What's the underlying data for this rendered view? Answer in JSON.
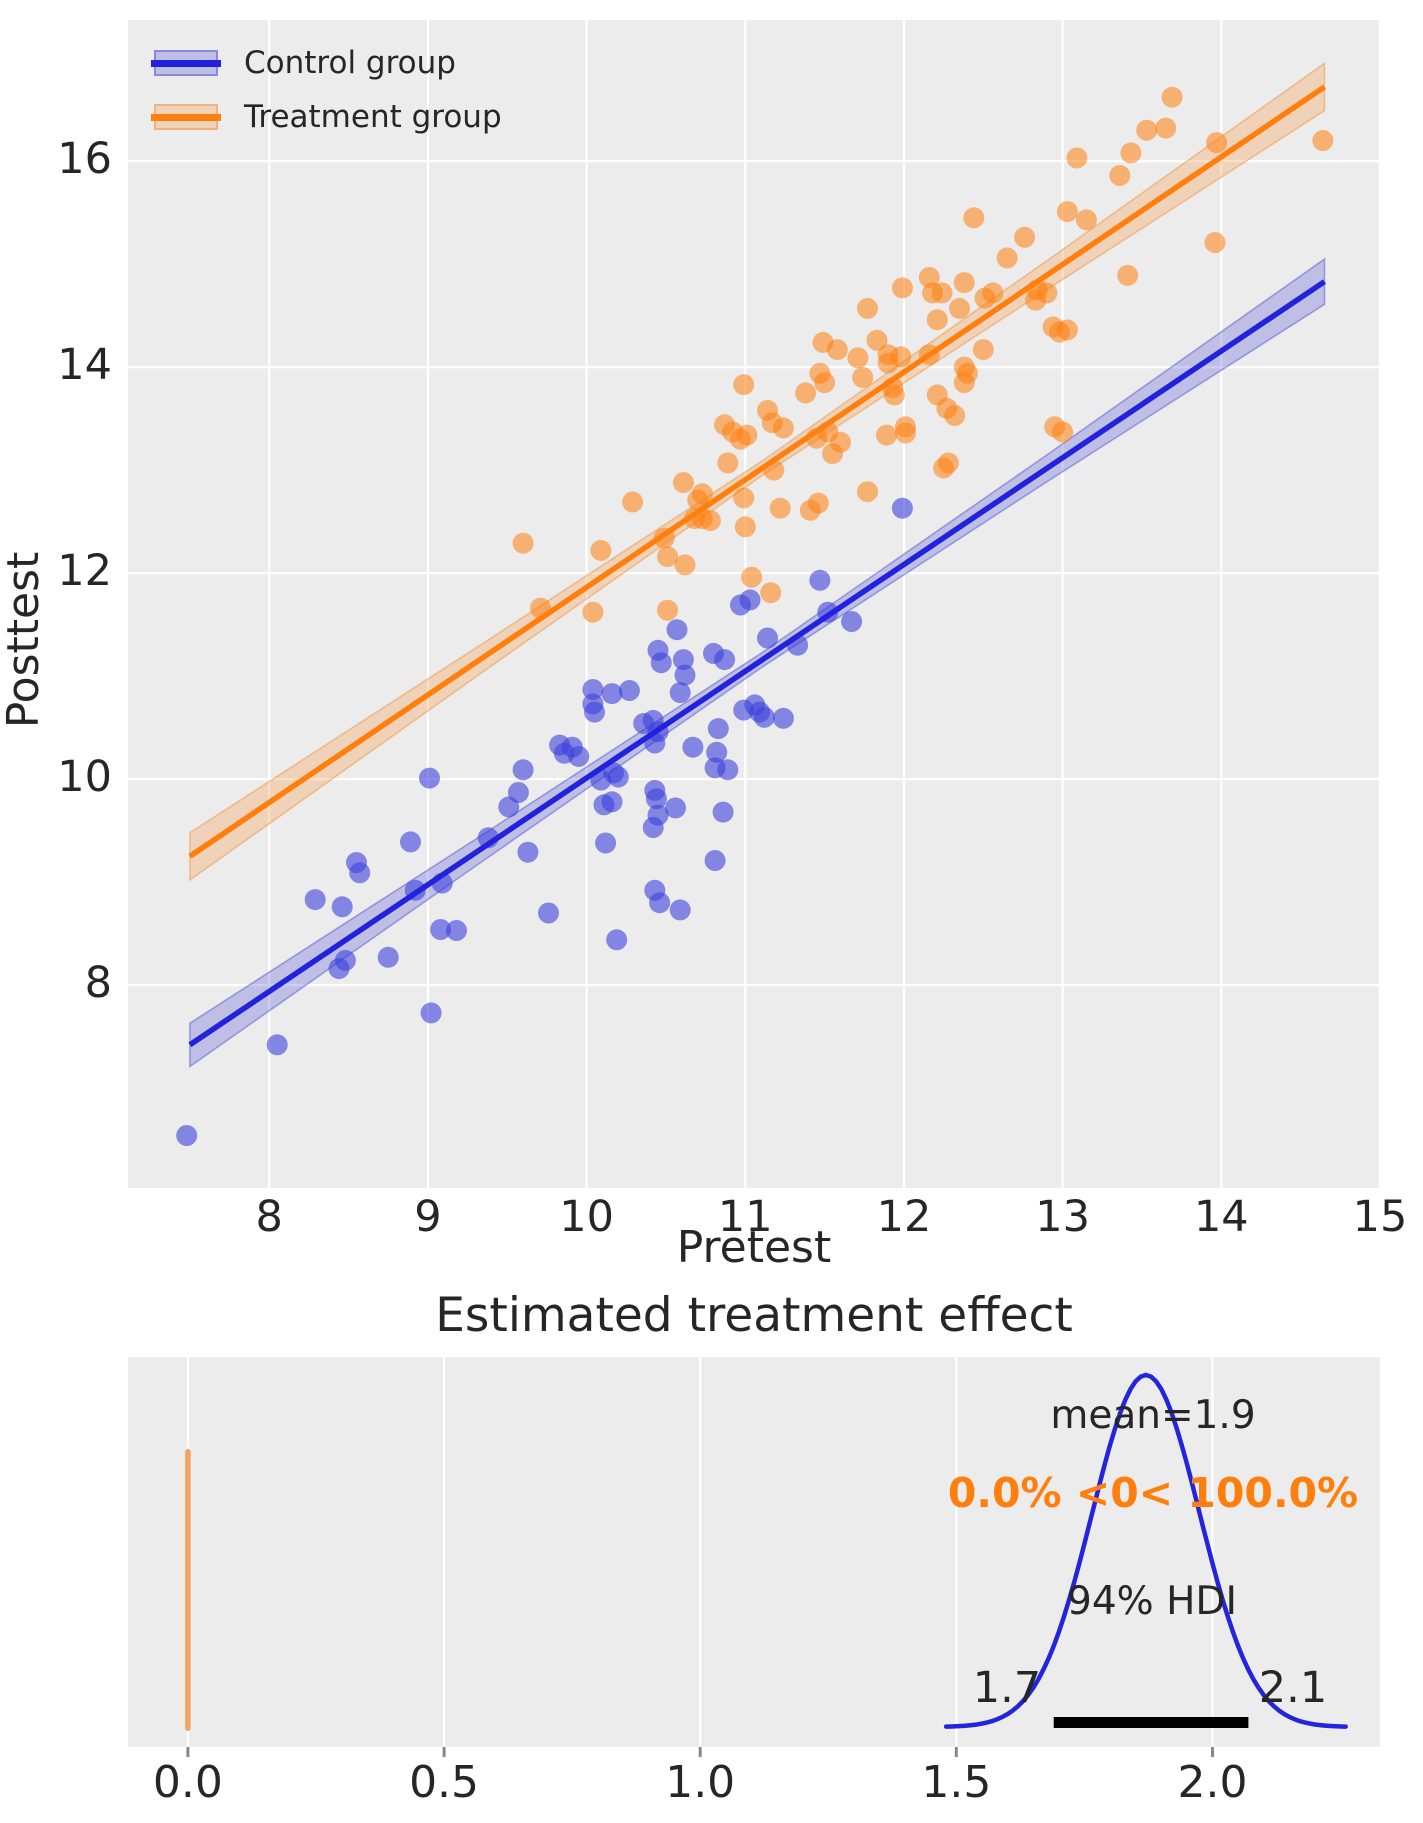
{
  "colors": {
    "background": "#ffffff",
    "axes_background": "#ececec",
    "grid": "#ffffff",
    "text": "#262626",
    "control_line": "#2222dd",
    "control_scatter": "#3c41dc",
    "control_band_fill": "rgba(70,70,215,0.27)",
    "control_band_edge": "rgba(70,70,215,0.45)",
    "treatment_line": "#ff7f0e",
    "treatment_scatter": "#ff7f0e",
    "treatment_band_fill": "rgba(246,150,60,0.30)",
    "treatment_band_edge": "rgba(240,150,70,0.50)",
    "kde_line": "#2424dd",
    "ref_line": "#f2a263",
    "hdi_bar": "#000000",
    "tick_mark": "#888888"
  },
  "chart_data": [
    {
      "type": "scatter",
      "title": "",
      "xlabel": "Pretest",
      "ylabel": "Posttest",
      "xlim": [
        7.11,
        15.0
      ],
      "ylim": [
        6.03,
        17.37
      ],
      "x_ticks": [
        8,
        9,
        10,
        11,
        12,
        13,
        14,
        15
      ],
      "y_ticks": [
        8,
        10,
        12,
        14,
        16
      ],
      "grid": true,
      "legend_position": "upper left",
      "series": [
        {
          "name": "Control group",
          "scatter_alpha": 0.6,
          "line": {
            "x": [
              7.5,
              14.65
            ],
            "y": [
              7.42,
              14.83
            ]
          },
          "band": {
            "x": [
              7.5,
              9.3,
              11.1,
              12.9,
              14.65
            ],
            "half_width": [
              0.21,
              0.13,
              0.07,
              0.13,
              0.22
            ]
          },
          "points": [
            [
              7.48,
              6.54
            ],
            [
              8.05,
              7.42
            ],
            [
              8.29,
              8.83
            ],
            [
              8.44,
              8.16
            ],
            [
              8.46,
              8.76
            ],
            [
              8.48,
              8.24
            ],
            [
              8.55,
              9.19
            ],
            [
              8.57,
              9.09
            ],
            [
              8.75,
              8.27
            ],
            [
              8.89,
              9.39
            ],
            [
              8.92,
              8.92
            ],
            [
              9.01,
              10.01
            ],
            [
              9.02,
              7.73
            ],
            [
              9.08,
              8.54
            ],
            [
              9.09,
              8.99
            ],
            [
              9.18,
              8.53
            ],
            [
              9.38,
              9.43
            ],
            [
              9.51,
              9.73
            ],
            [
              9.57,
              9.87
            ],
            [
              9.6,
              10.09
            ],
            [
              9.63,
              9.29
            ],
            [
              9.76,
              8.7
            ],
            [
              9.83,
              10.33
            ],
            [
              9.86,
              10.25
            ],
            [
              9.91,
              10.31
            ],
            [
              9.95,
              10.22
            ],
            [
              10.04,
              10.87
            ],
            [
              10.04,
              10.73
            ],
            [
              10.05,
              10.65
            ],
            [
              10.09,
              9.99
            ],
            [
              10.11,
              9.75
            ],
            [
              10.12,
              9.38
            ],
            [
              10.16,
              9.78
            ],
            [
              10.16,
              10.83
            ],
            [
              10.17,
              10.06
            ],
            [
              10.19,
              8.44
            ],
            [
              10.2,
              10.02
            ],
            [
              10.27,
              10.86
            ],
            [
              10.36,
              10.54
            ],
            [
              10.42,
              10.57
            ],
            [
              10.42,
              9.53
            ],
            [
              10.43,
              10.35
            ],
            [
              10.43,
              9.89
            ],
            [
              10.43,
              8.92
            ],
            [
              10.44,
              9.81
            ],
            [
              10.45,
              11.25
            ],
            [
              10.45,
              10.46
            ],
            [
              10.45,
              9.65
            ],
            [
              10.46,
              8.8
            ],
            [
              10.47,
              11.13
            ],
            [
              10.56,
              9.72
            ],
            [
              10.57,
              11.45
            ],
            [
              10.59,
              10.84
            ],
            [
              10.59,
              8.73
            ],
            [
              10.61,
              11.16
            ],
            [
              10.62,
              11.01
            ],
            [
              10.67,
              10.31
            ],
            [
              10.8,
              11.22
            ],
            [
              10.81,
              10.11
            ],
            [
              10.81,
              9.21
            ],
            [
              10.82,
              10.26
            ],
            [
              10.83,
              10.49
            ],
            [
              10.86,
              9.68
            ],
            [
              10.87,
              11.16
            ],
            [
              10.89,
              10.09
            ],
            [
              10.97,
              11.69
            ],
            [
              10.99,
              10.67
            ],
            [
              11.03,
              11.74
            ],
            [
              11.06,
              10.72
            ],
            [
              11.09,
              10.65
            ],
            [
              11.12,
              10.6
            ],
            [
              11.14,
              11.37
            ],
            [
              11.24,
              10.59
            ],
            [
              11.33,
              11.3
            ],
            [
              11.47,
              11.93
            ],
            [
              11.52,
              11.62
            ],
            [
              11.67,
              11.53
            ],
            [
              11.99,
              12.63
            ]
          ]
        },
        {
          "name": "Treatment group",
          "scatter_alpha": 0.55,
          "line": {
            "x": [
              7.5,
              14.65
            ],
            "y": [
              9.25,
              16.72
            ]
          },
          "band": {
            "x": [
              7.5,
              9.3,
              11.1,
              12.9,
              14.65
            ],
            "half_width": [
              0.23,
              0.14,
              0.07,
              0.14,
              0.23
            ]
          },
          "points": [
            [
              9.6,
              12.29
            ],
            [
              9.71,
              11.66
            ],
            [
              10.04,
              11.62
            ],
            [
              10.09,
              12.22
            ],
            [
              10.29,
              12.69
            ],
            [
              10.49,
              12.34
            ],
            [
              10.51,
              12.16
            ],
            [
              10.51,
              11.64
            ],
            [
              10.61,
              12.88
            ],
            [
              10.62,
              12.08
            ],
            [
              10.68,
              12.53
            ],
            [
              10.7,
              12.71
            ],
            [
              10.73,
              12.77
            ],
            [
              10.73,
              12.53
            ],
            [
              10.78,
              12.51
            ],
            [
              10.87,
              13.44
            ],
            [
              10.89,
              13.07
            ],
            [
              10.92,
              13.37
            ],
            [
              10.97,
              13.3
            ],
            [
              10.99,
              13.83
            ],
            [
              10.99,
              12.73
            ],
            [
              11.0,
              12.45
            ],
            [
              11.01,
              13.34
            ],
            [
              11.04,
              11.96
            ],
            [
              11.14,
              13.58
            ],
            [
              11.16,
              11.81
            ],
            [
              11.17,
              13.46
            ],
            [
              11.18,
              13.0
            ],
            [
              11.22,
              12.63
            ],
            [
              11.24,
              13.41
            ],
            [
              11.38,
              13.75
            ],
            [
              11.41,
              12.61
            ],
            [
              11.45,
              13.31
            ],
            [
              11.46,
              12.68
            ],
            [
              11.47,
              13.94
            ],
            [
              11.49,
              14.24
            ],
            [
              11.5,
              13.85
            ],
            [
              11.52,
              13.37
            ],
            [
              11.55,
              13.16
            ],
            [
              11.58,
              14.17
            ],
            [
              11.6,
              13.27
            ],
            [
              11.71,
              14.09
            ],
            [
              11.74,
              13.9
            ],
            [
              11.77,
              14.57
            ],
            [
              11.77,
              12.79
            ],
            [
              11.83,
              14.26
            ],
            [
              11.89,
              13.34
            ],
            [
              11.9,
              14.12
            ],
            [
              11.9,
              14.04
            ],
            [
              11.93,
              13.8
            ],
            [
              11.94,
              13.73
            ],
            [
              11.98,
              14.1
            ],
            [
              11.99,
              14.77
            ],
            [
              12.01,
              13.42
            ],
            [
              12.01,
              13.36
            ],
            [
              12.16,
              14.87
            ],
            [
              12.16,
              14.12
            ],
            [
              12.18,
              14.72
            ],
            [
              12.21,
              14.46
            ],
            [
              12.21,
              13.73
            ],
            [
              12.24,
              14.72
            ],
            [
              12.25,
              13.02
            ],
            [
              12.27,
              13.6
            ],
            [
              12.28,
              13.07
            ],
            [
              12.32,
              13.53
            ],
            [
              12.35,
              14.57
            ],
            [
              12.38,
              14.82
            ],
            [
              12.38,
              14.0
            ],
            [
              12.38,
              13.85
            ],
            [
              12.4,
              13.94
            ],
            [
              12.44,
              15.45
            ],
            [
              12.5,
              14.17
            ],
            [
              12.51,
              14.67
            ],
            [
              12.56,
              14.72
            ],
            [
              12.65,
              15.06
            ],
            [
              12.76,
              15.26
            ],
            [
              12.83,
              14.65
            ],
            [
              12.84,
              14.75
            ],
            [
              12.9,
              14.72
            ],
            [
              12.94,
              14.39
            ],
            [
              12.95,
              13.42
            ],
            [
              12.98,
              14.34
            ],
            [
              13.0,
              13.37
            ],
            [
              13.03,
              15.51
            ],
            [
              13.03,
              14.36
            ],
            [
              13.09,
              16.03
            ],
            [
              13.15,
              15.43
            ],
            [
              13.36,
              15.86
            ],
            [
              13.41,
              14.89
            ],
            [
              13.43,
              16.08
            ],
            [
              13.53,
              16.3
            ],
            [
              13.65,
              16.32
            ],
            [
              13.69,
              16.62
            ],
            [
              13.96,
              15.21
            ],
            [
              13.97,
              16.18
            ],
            [
              14.64,
              16.2
            ]
          ]
        }
      ]
    },
    {
      "type": "area",
      "title": "Estimated treatment effect",
      "xlabel": "",
      "ylabel": "",
      "xlim": [
        -0.117,
        2.327
      ],
      "x_ticks": [
        0.0,
        0.5,
        1.0,
        1.5,
        2.0
      ],
      "x_tick_labels": [
        "0.0",
        "0.5",
        "1.0",
        "1.5",
        "2.0"
      ],
      "grid": true,
      "ref_line": {
        "x": 0.0
      },
      "kde": {
        "mean": 1.87,
        "sigma": 0.105,
        "x_start": 1.48,
        "x_end": 2.26
      },
      "hdi": {
        "low": 1.69,
        "high": 2.07
      },
      "annotations": {
        "mean": "mean=1.9",
        "prob": "0.0% <0< 100.0%",
        "hdi_label": "94% HDI",
        "hdi_low": "1.7",
        "hdi_high": "2.1"
      }
    }
  ]
}
